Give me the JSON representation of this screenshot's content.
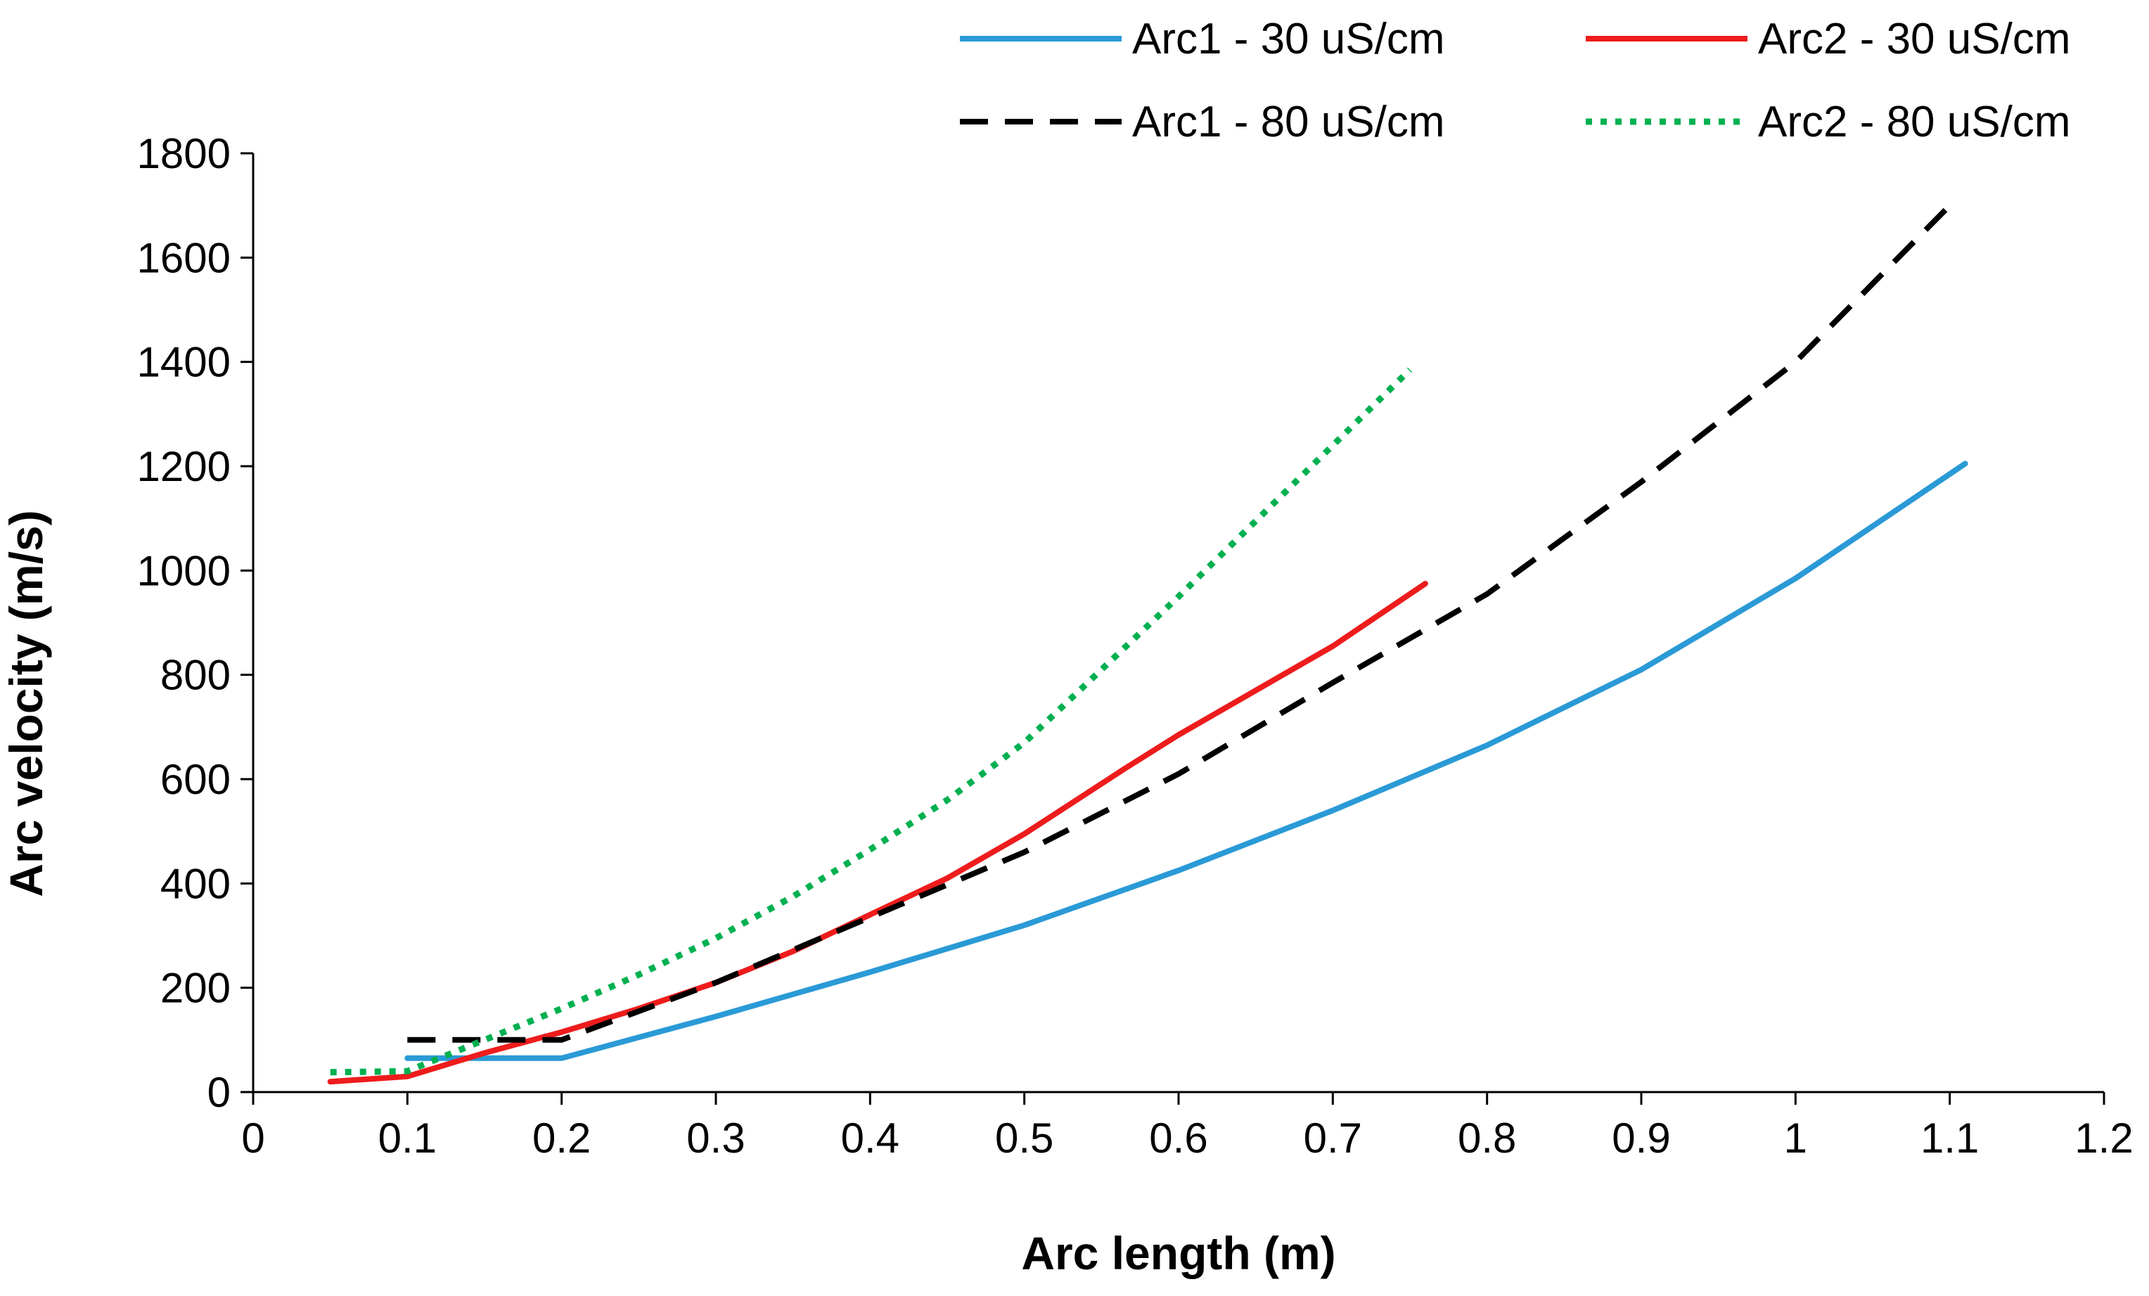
{
  "chart_data": {
    "type": "line",
    "title": "",
    "xlabel": "Arc length (m)",
    "ylabel": "Arc velocity (m/s)",
    "xlim": [
      0,
      1.2
    ],
    "ylim": [
      0,
      1800
    ],
    "xticks": [
      0,
      0.1,
      0.2,
      0.3,
      0.4,
      0.5,
      0.6,
      0.7,
      0.8,
      0.9,
      1,
      1.1,
      1.2
    ],
    "xtick_labels": [
      "0",
      "0.1",
      "0.2",
      "0.3",
      "0.4",
      "0.5",
      "0.6",
      "0.7",
      "0.8",
      "0.9",
      "1",
      "1.1",
      "1.2"
    ],
    "yticks": [
      0,
      200,
      400,
      600,
      800,
      1000,
      1200,
      1400,
      1600,
      1800
    ],
    "ytick_labels": [
      "0",
      "200",
      "400",
      "600",
      "800",
      "1000",
      "1200",
      "1400",
      "1600",
      "1800"
    ],
    "grid": false,
    "legend_position": "top",
    "series": [
      {
        "name": "Arc1 - 30 uS/cm",
        "color": "#2a9ad6",
        "style": "solid",
        "x": [
          0.1,
          0.2,
          0.3,
          0.4,
          0.5,
          0.6,
          0.7,
          0.8,
          0.9,
          1.0,
          1.11
        ],
        "y": [
          65,
          65,
          145,
          230,
          320,
          425,
          540,
          665,
          810,
          985,
          1205
        ]
      },
      {
        "name": "Arc2 - 30 uS/cm",
        "color": "#ee1c1c",
        "style": "solid",
        "x": [
          0.05,
          0.1,
          0.15,
          0.2,
          0.25,
          0.3,
          0.35,
          0.4,
          0.45,
          0.5,
          0.565,
          0.6,
          0.65,
          0.7,
          0.76
        ],
        "y": [
          20,
          30,
          75,
          115,
          160,
          210,
          270,
          340,
          410,
          495,
          620,
          685,
          770,
          855,
          975
        ]
      },
      {
        "name": "Arc1 - 80 uS/cm",
        "color": "#000000",
        "style": "dashed",
        "x": [
          0.1,
          0.2,
          0.3,
          0.4,
          0.5,
          0.6,
          0.7,
          0.8,
          0.9,
          1.0,
          1.1
        ],
        "y": [
          100,
          100,
          210,
          335,
          460,
          610,
          785,
          955,
          1170,
          1400,
          1700
        ]
      },
      {
        "name": "Arc2 - 80 uS/cm",
        "color": "#00b050",
        "style": "dotted",
        "x": [
          0.05,
          0.1,
          0.15,
          0.2,
          0.25,
          0.3,
          0.35,
          0.4,
          0.45,
          0.5,
          0.55,
          0.6,
          0.65,
          0.7,
          0.75
        ],
        "y": [
          38,
          40,
          100,
          160,
          225,
          295,
          375,
          465,
          560,
          670,
          810,
          950,
          1095,
          1240,
          1385
        ]
      }
    ]
  }
}
